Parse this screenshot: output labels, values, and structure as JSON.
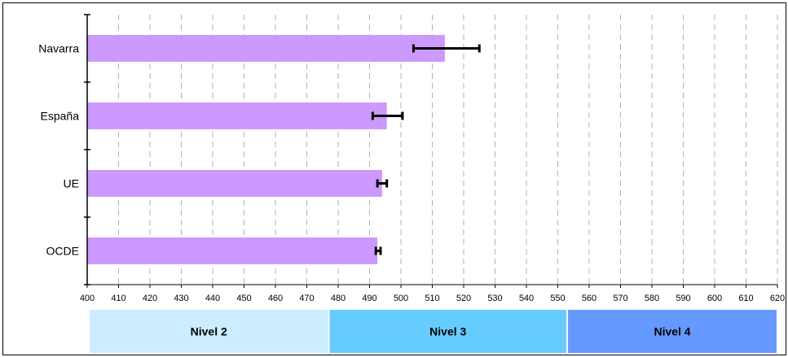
{
  "chart_data": {
    "type": "bar",
    "orientation": "horizontal",
    "categories": [
      "Navarra",
      "España",
      "UE",
      "OCDE"
    ],
    "values": [
      514,
      495.5,
      494,
      492.5
    ],
    "error_low": [
      504,
      491,
      492.5,
      492
    ],
    "error_high": [
      525,
      500.5,
      495.5,
      493.5
    ],
    "xlim": [
      400,
      620
    ],
    "xticks": [
      400,
      410,
      420,
      430,
      440,
      450,
      460,
      470,
      480,
      490,
      500,
      510,
      520,
      530,
      540,
      550,
      560,
      570,
      580,
      590,
      600,
      610,
      620
    ],
    "grid": "vertical dashed",
    "bar_color": "#cc99ff",
    "levels": [
      {
        "label": "Nivel 2",
        "from": 400,
        "to": 477,
        "color": "#ccecff"
      },
      {
        "label": "Nivel 3",
        "from": 477,
        "to": 553,
        "color": "#66ccff"
      },
      {
        "label": "Nivel 4",
        "from": 553,
        "to": 620,
        "color": "#6699ff"
      }
    ]
  }
}
